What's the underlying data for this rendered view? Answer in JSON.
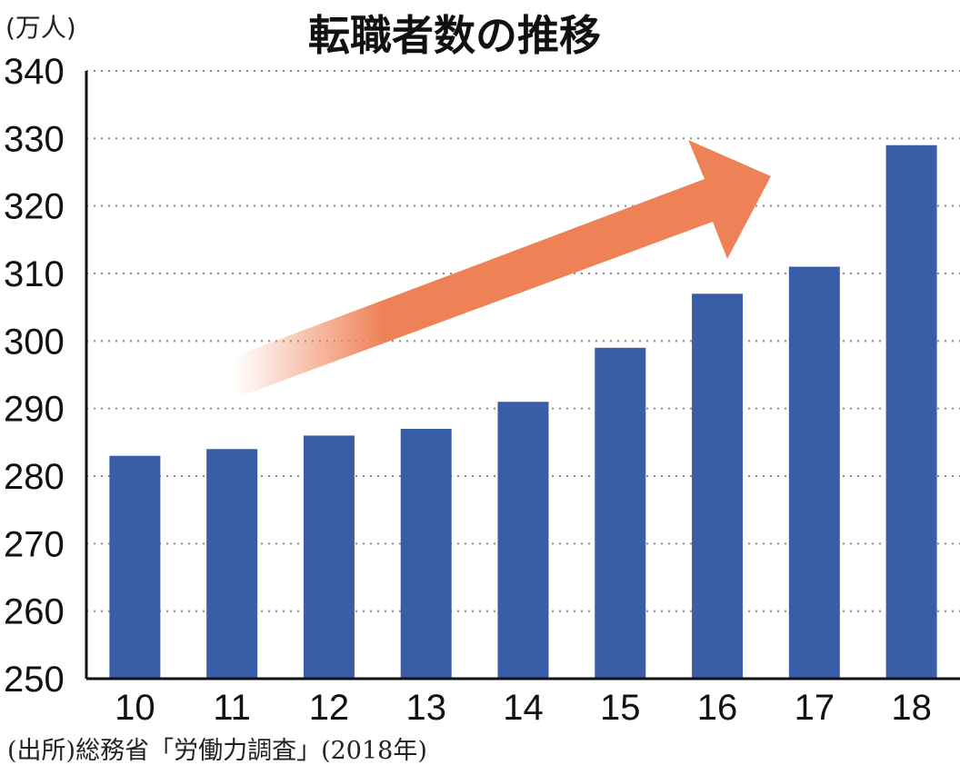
{
  "unit_label": "(万人)",
  "title": "転職者数の推移",
  "source": "(出所)総務省「労働力調査」(2018年)",
  "colors": {
    "bar": "#3a5da8",
    "arrow": "#ef8156",
    "background": "#ffffff"
  },
  "chart_data": {
    "type": "bar",
    "categories": [
      "10",
      "11",
      "12",
      "13",
      "14",
      "15",
      "16",
      "17",
      "18"
    ],
    "values": [
      283,
      284,
      286,
      287,
      291,
      299,
      307,
      311,
      329
    ],
    "title": "転職者数の推移",
    "xlabel": "",
    "ylabel": "(万人)",
    "ylim": [
      250,
      340
    ],
    "yticks": [
      250,
      260,
      270,
      280,
      290,
      300,
      310,
      320,
      330,
      340
    ],
    "grid": true,
    "annotation": "upward trend arrow"
  }
}
